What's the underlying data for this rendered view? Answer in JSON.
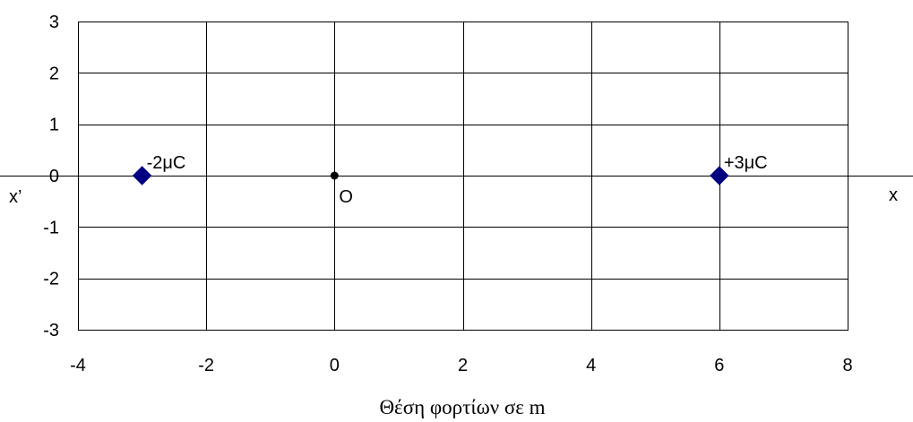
{
  "chart_data": {
    "type": "scatter",
    "xlabel": "Θέση φορτίων σε m",
    "ylabel": "",
    "xlim": [
      -4,
      8
    ],
    "ylim": [
      -3,
      3
    ],
    "x_ticks": [
      "-4",
      "-2",
      "0",
      "2",
      "4",
      "6",
      "8"
    ],
    "y_ticks": [
      "3",
      "2",
      "1",
      "0",
      "-1",
      "-2",
      "-3"
    ],
    "grid": true,
    "series": [
      {
        "marker": "diamond",
        "color": "#000080",
        "points": [
          {
            "x": -3,
            "y": 0,
            "label": "-2μC"
          },
          {
            "x": 6,
            "y": 0,
            "label": "+3μC"
          }
        ]
      }
    ],
    "origin": {
      "x": 0,
      "y": 0,
      "label": "O",
      "marker": "dot",
      "color": "#000000"
    },
    "axis_end_labels": {
      "left": "x’",
      "right": "x"
    }
  }
}
